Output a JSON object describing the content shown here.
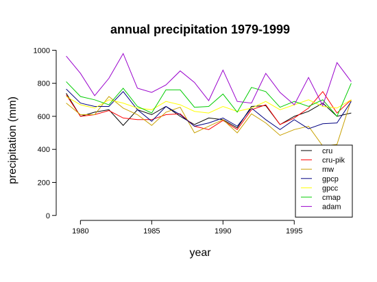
{
  "chart_data": {
    "type": "line",
    "title": "annual precipitation 1979-1999",
    "xlabel": "year",
    "ylabel": "precipitation (mm)",
    "xlim": [
      1978.3,
      1999.7
    ],
    "ylim": [
      -30,
      1010
    ],
    "x_ticks": [
      1980,
      1985,
      1990,
      1995
    ],
    "y_ticks": [
      0,
      200,
      400,
      600,
      800,
      1000
    ],
    "grid": false,
    "legend_position": "bottom-right",
    "x": [
      1979,
      1980,
      1981,
      1982,
      1983,
      1984,
      1985,
      1986,
      1987,
      1988,
      1989,
      1990,
      1991,
      1992,
      1993,
      1994,
      1995,
      1996,
      1997,
      1998,
      1999
    ],
    "series": [
      {
        "name": "cru",
        "color": "#000000",
        "values": [
          740,
          600,
          625,
          640,
          545,
          640,
          610,
          660,
          600,
          550,
          590,
          580,
          530,
          660,
          665,
          550,
          600,
          630,
          680,
          600,
          620
        ]
      },
      {
        "name": "cru-pik",
        "color": "#ff0000",
        "values": [
          730,
          600,
          610,
          635,
          590,
          580,
          580,
          610,
          615,
          540,
          520,
          575,
          520,
          640,
          670,
          550,
          590,
          650,
          750,
          620,
          700
        ]
      },
      {
        "name": "mw",
        "color": "#c8a000",
        "values": [
          680,
          610,
          610,
          720,
          650,
          610,
          545,
          625,
          655,
          500,
          540,
          580,
          500,
          615,
          560,
          485,
          520,
          540,
          420,
          430,
          700
        ]
      },
      {
        "name": "gpcp",
        "color": "#000080",
        "values": [
          765,
          680,
          660,
          660,
          750,
          640,
          570,
          660,
          610,
          540,
          560,
          590,
          540,
          650,
          580,
          520,
          580,
          525,
          555,
          560,
          690
        ]
      },
      {
        "name": "gpcc",
        "color": "#ffff00",
        "values": [
          720,
          670,
          650,
          700,
          680,
          650,
          640,
          690,
          670,
          630,
          620,
          660,
          630,
          650,
          690,
          640,
          670,
          700,
          660,
          650,
          700
        ]
      },
      {
        "name": "cmap",
        "color": "#00cc00",
        "values": [
          810,
          720,
          700,
          670,
          770,
          660,
          620,
          760,
          760,
          655,
          660,
          735,
          625,
          775,
          750,
          655,
          690,
          660,
          700,
          600,
          800
        ]
      },
      {
        "name": "adam",
        "color": "#9900cc",
        "values": [
          965,
          860,
          725,
          830,
          980,
          770,
          745,
          790,
          875,
          805,
          695,
          880,
          690,
          680,
          860,
          745,
          670,
          835,
          665,
          925,
          810
        ]
      }
    ]
  }
}
